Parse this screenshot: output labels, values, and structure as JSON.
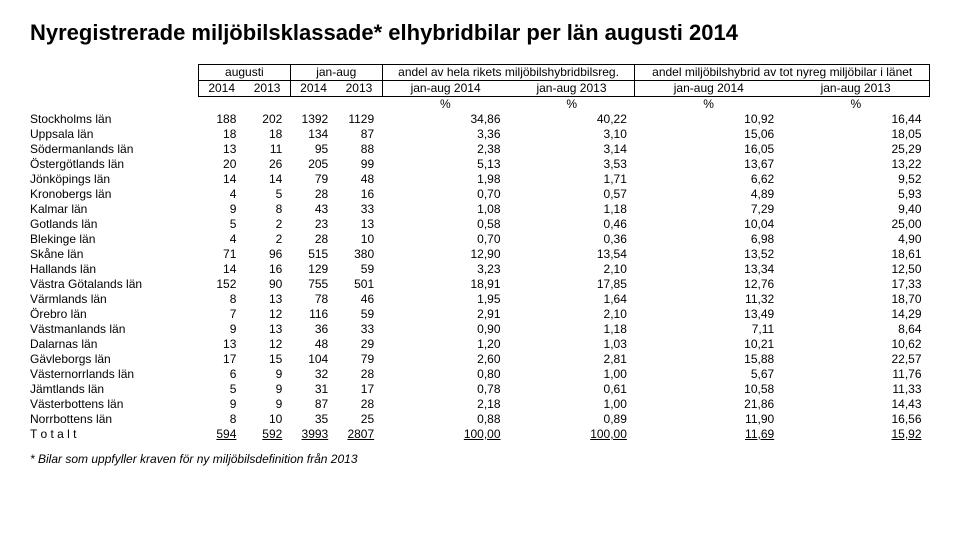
{
  "title": "Nyregistrerade miljöbilsklassade* elhybridbilar per län augusti 2014",
  "footnote": "* Bilar som uppfyller kraven för ny miljöbilsdefinition från 2013",
  "header": {
    "group1": "augusti",
    "group2": "jan-aug",
    "group3": "andel av hela rikets miljöbilshybridbilsreg.",
    "group4": "andel miljöbilshybrid av tot nyreg miljöbilar i länet",
    "c1": "2014",
    "c2": "2013",
    "c3": "2014",
    "c4": "2013",
    "c5": "jan-aug 2014",
    "c6": "jan-aug 2013",
    "c7": "jan-aug 2014",
    "c8": "jan-aug 2013",
    "pct": "%"
  },
  "rows": [
    {
      "label": "Stockholms län",
      "c1": "188",
      "c2": "202",
      "c3": "1392",
      "c4": "1129",
      "c5": "34,86",
      "c6": "40,22",
      "c7": "10,92",
      "c8": "16,44"
    },
    {
      "label": "Uppsala län",
      "c1": "18",
      "c2": "18",
      "c3": "134",
      "c4": "87",
      "c5": "3,36",
      "c6": "3,10",
      "c7": "15,06",
      "c8": "18,05"
    },
    {
      "label": "Södermanlands län",
      "c1": "13",
      "c2": "11",
      "c3": "95",
      "c4": "88",
      "c5": "2,38",
      "c6": "3,14",
      "c7": "16,05",
      "c8": "25,29"
    },
    {
      "label": "Östergötlands län",
      "c1": "20",
      "c2": "26",
      "c3": "205",
      "c4": "99",
      "c5": "5,13",
      "c6": "3,53",
      "c7": "13,67",
      "c8": "13,22"
    },
    {
      "label": "Jönköpings län",
      "c1": "14",
      "c2": "14",
      "c3": "79",
      "c4": "48",
      "c5": "1,98",
      "c6": "1,71",
      "c7": "6,62",
      "c8": "9,52"
    },
    {
      "label": "Kronobergs län",
      "c1": "4",
      "c2": "5",
      "c3": "28",
      "c4": "16",
      "c5": "0,70",
      "c6": "0,57",
      "c7": "4,89",
      "c8": "5,93"
    },
    {
      "label": "Kalmar län",
      "c1": "9",
      "c2": "8",
      "c3": "43",
      "c4": "33",
      "c5": "1,08",
      "c6": "1,18",
      "c7": "7,29",
      "c8": "9,40"
    },
    {
      "label": "Gotlands län",
      "c1": "5",
      "c2": "2",
      "c3": "23",
      "c4": "13",
      "c5": "0,58",
      "c6": "0,46",
      "c7": "10,04",
      "c8": "25,00"
    },
    {
      "label": "Blekinge län",
      "c1": "4",
      "c2": "2",
      "c3": "28",
      "c4": "10",
      "c5": "0,70",
      "c6": "0,36",
      "c7": "6,98",
      "c8": "4,90"
    },
    {
      "label": "Skåne län",
      "c1": "71",
      "c2": "96",
      "c3": "515",
      "c4": "380",
      "c5": "12,90",
      "c6": "13,54",
      "c7": "13,52",
      "c8": "18,61"
    },
    {
      "label": "Hallands län",
      "c1": "14",
      "c2": "16",
      "c3": "129",
      "c4": "59",
      "c5": "3,23",
      "c6": "2,10",
      "c7": "13,34",
      "c8": "12,50"
    },
    {
      "label": "Västra Götalands län",
      "c1": "152",
      "c2": "90",
      "c3": "755",
      "c4": "501",
      "c5": "18,91",
      "c6": "17,85",
      "c7": "12,76",
      "c8": "17,33"
    },
    {
      "label": "Värmlands län",
      "c1": "8",
      "c2": "13",
      "c3": "78",
      "c4": "46",
      "c5": "1,95",
      "c6": "1,64",
      "c7": "11,32",
      "c8": "18,70"
    },
    {
      "label": "Örebro län",
      "c1": "7",
      "c2": "12",
      "c3": "116",
      "c4": "59",
      "c5": "2,91",
      "c6": "2,10",
      "c7": "13,49",
      "c8": "14,29"
    },
    {
      "label": "Västmanlands län",
      "c1": "9",
      "c2": "13",
      "c3": "36",
      "c4": "33",
      "c5": "0,90",
      "c6": "1,18",
      "c7": "7,11",
      "c8": "8,64"
    },
    {
      "label": "Dalarnas län",
      "c1": "13",
      "c2": "12",
      "c3": "48",
      "c4": "29",
      "c5": "1,20",
      "c6": "1,03",
      "c7": "10,21",
      "c8": "10,62"
    },
    {
      "label": "Gävleborgs län",
      "c1": "17",
      "c2": "15",
      "c3": "104",
      "c4": "79",
      "c5": "2,60",
      "c6": "2,81",
      "c7": "15,88",
      "c8": "22,57"
    },
    {
      "label": "Västernorrlands län",
      "c1": "6",
      "c2": "9",
      "c3": "32",
      "c4": "28",
      "c5": "0,80",
      "c6": "1,00",
      "c7": "5,67",
      "c8": "11,76"
    },
    {
      "label": "Jämtlands län",
      "c1": "5",
      "c2": "9",
      "c3": "31",
      "c4": "17",
      "c5": "0,78",
      "c6": "0,61",
      "c7": "10,58",
      "c8": "11,33"
    },
    {
      "label": "Västerbottens län",
      "c1": "9",
      "c2": "9",
      "c3": "87",
      "c4": "28",
      "c5": "2,18",
      "c6": "1,00",
      "c7": "21,86",
      "c8": "14,43"
    },
    {
      "label": "Norrbottens län",
      "c1": "8",
      "c2": "10",
      "c3": "35",
      "c4": "25",
      "c5": "0,88",
      "c6": "0,89",
      "c7": "11,90",
      "c8": "16,56"
    }
  ],
  "total": {
    "label": "T o t a l t",
    "c1": "594",
    "c2": "592",
    "c3": "3993",
    "c4": "2807",
    "c5": "100,00",
    "c6": "100,00",
    "c7": "11,69",
    "c8": "15,92"
  }
}
